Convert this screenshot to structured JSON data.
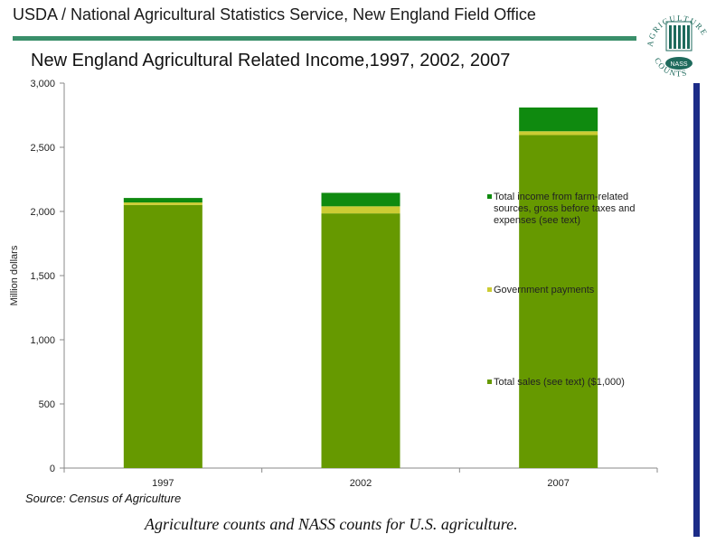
{
  "header": {
    "title": "USDA / National Agricultural Statistics Service, New England Field Office"
  },
  "logo": {
    "ring_text": "AGRICULTURE COUNTS",
    "badge_text": "NASS",
    "colors": {
      "primary": "#1e6a5c",
      "accent": "#3a8f6a"
    }
  },
  "footer": {
    "source": "Source: Census of Agriculture",
    "tagline": "Agriculture counts and NASS counts for U.S. agriculture."
  },
  "colors": {
    "total_sales": "#669900",
    "government_payments": "#cccc33",
    "farm_related_income": "#0f8a0f",
    "header_rule": "#3a8f6a",
    "side_bar": "#1c2c88"
  },
  "chart_data": {
    "type": "bar",
    "stacked": true,
    "title": "New England Agricultural Related Income,1997, 2002, 2007",
    "xlabel": "",
    "ylabel": "Million dollars",
    "ylim": [
      0,
      3000
    ],
    "yticks": [
      0,
      500,
      1000,
      1500,
      2000,
      2500,
      3000
    ],
    "ytick_labels": [
      "0",
      "500",
      "1,000",
      "1,500",
      "2,000",
      "2,500",
      "3,000"
    ],
    "categories": [
      "1997",
      "2002",
      "2007"
    ],
    "series": [
      {
        "name": "Total sales (see text) ($1,000)",
        "values": [
          2050,
          1985,
          2595
        ],
        "color": "#669900"
      },
      {
        "name": "Government payments",
        "values": [
          20,
          55,
          30
        ],
        "color": "#cccc33"
      },
      {
        "name": "Total income from farm-related sources, gross before taxes and expenses (see text)",
        "values": [
          35,
          105,
          185
        ],
        "color": "#0f8a0f"
      }
    ],
    "legend_placement": "right",
    "grid": false
  }
}
